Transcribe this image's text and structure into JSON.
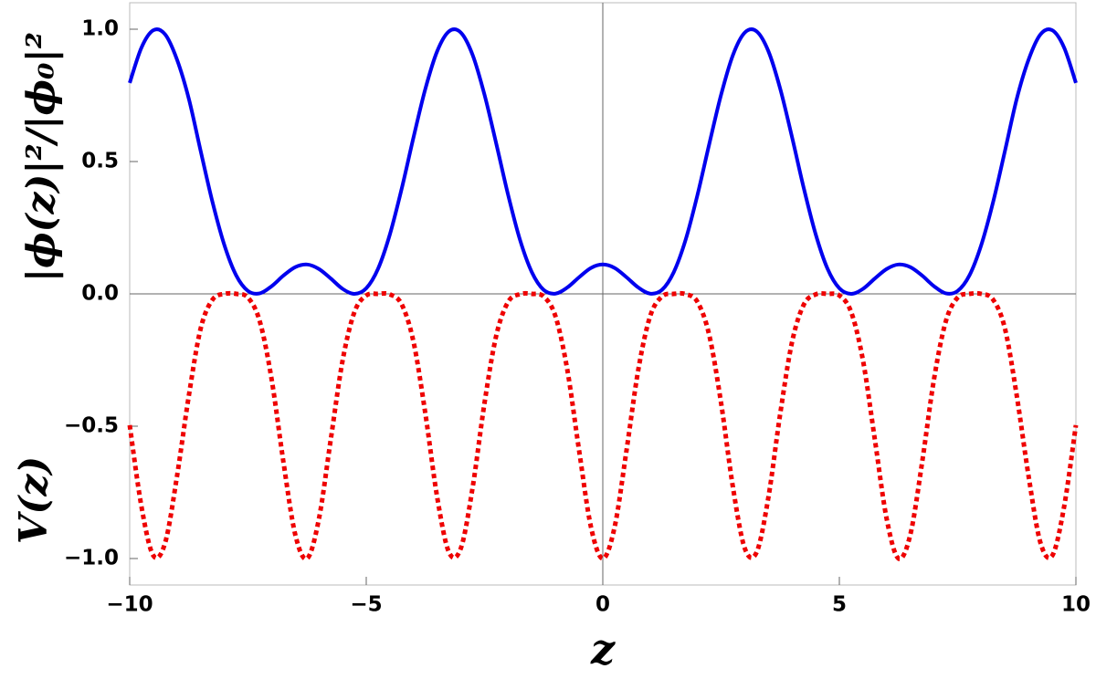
{
  "chart_data": {
    "type": "line",
    "xlabel": "z",
    "ylabels": [
      "|ϕ(z)|²/|ϕ₀|²",
      "V(z)"
    ],
    "x": [
      -10,
      -9.75,
      -9.5,
      -9.25,
      -9,
      -8.75,
      -8.5,
      -8.25,
      -8,
      -7.75,
      -7.5,
      -7.25,
      -7,
      -6.75,
      -6.5,
      -6.25,
      -6,
      -5.75,
      -5.5,
      -5.25,
      -5,
      -4.75,
      -4.5,
      -4.25,
      -4,
      -3.75,
      -3.5,
      -3.25,
      -3,
      -2.75,
      -2.5,
      -2.25,
      -2,
      -1.75,
      -1.5,
      -1.25,
      -1,
      -0.75,
      -0.5,
      -0.25,
      0,
      0.25,
      0.5,
      0.75,
      1,
      1.25,
      1.5,
      1.75,
      2,
      2.25,
      2.5,
      2.75,
      3,
      3.25,
      3.5,
      3.75,
      4,
      4.25,
      4.5,
      4.75,
      5,
      5.25,
      5.5,
      5.75,
      6,
      6.25,
      6.5,
      6.75,
      7,
      7.25,
      7.5,
      7.75,
      8,
      8.25,
      8.5,
      8.75,
      9,
      9.25,
      9.5,
      9.75,
      10
    ],
    "series": [
      {
        "color": "#0000ee",
        "style": "solid",
        "values": [
          0.797,
          0.931,
          0.996,
          0.98,
          0.885,
          0.737,
          0.54,
          0.347,
          0.185,
          0.07,
          0.011,
          0.002,
          0.029,
          0.069,
          0.101,
          0.111,
          0.094,
          0.058,
          0.019,
          0,
          0.021,
          0.095,
          0.225,
          0.398,
          0.592,
          0.775,
          0.917,
          0.992,
          0.987,
          0.902,
          0.752,
          0.566,
          0.373,
          0.204,
          0.082,
          0.015,
          0.001,
          0.024,
          0.063,
          0.098,
          0.111,
          0.098,
          0.063,
          0.024,
          0.001,
          0.015,
          0.082,
          0.204,
          0.373,
          0.566,
          0.752,
          0.902,
          0.987,
          0.992,
          0.917,
          0.775,
          0.592,
          0.398,
          0.225,
          0.095,
          0.021,
          0,
          0.019,
          0.058,
          0.094,
          0.111,
          0.101,
          0.069,
          0.029,
          0.002,
          0.011,
          0.07,
          0.185,
          0.347,
          0.54,
          0.737,
          0.885,
          0.98,
          0.996,
          0.931,
          0.797
        ]
      },
      {
        "color": "#ee0000",
        "style": "dotted",
        "values": [
          -0.496,
          -0.805,
          -0.989,
          -0.94,
          -0.689,
          -0.385,
          -0.131,
          -0.022,
          0,
          0,
          -0.014,
          -0.104,
          -0.323,
          -0.636,
          -0.91,
          -1,
          -0.85,
          -0.55,
          -0.252,
          -0.069,
          -0.006,
          0,
          -0.002,
          -0.04,
          -0.182,
          -0.453,
          -0.769,
          -0.977,
          -0.961,
          -0.73,
          -0.412,
          -0.156,
          -0.03,
          -0.001,
          0,
          -0.01,
          -0.085,
          -0.287,
          -0.593,
          -0.881,
          -1,
          -0.881,
          -0.593,
          -0.287,
          -0.085,
          -0.01,
          0,
          -0.001,
          -0.03,
          -0.156,
          -0.412,
          -0.73,
          -0.961,
          -0.977,
          -0.769,
          -0.453,
          -0.182,
          -0.04,
          -0.002,
          0,
          -0.006,
          -0.069,
          -0.252,
          -0.55,
          -0.85,
          -1,
          -0.91,
          -0.636,
          -0.323,
          -0.104,
          -0.014,
          0,
          0,
          -0.022,
          -0.131,
          -0.385,
          -0.689,
          -0.94,
          -0.989,
          -0.805,
          -0.496
        ]
      }
    ],
    "xlim": [
      -10,
      10
    ],
    "ylim": [
      -1.1,
      1.1
    ],
    "xticks": [
      {
        "value": -10,
        "label": "−10"
      },
      {
        "value": -5,
        "label": "−5"
      },
      0,
      5,
      10
    ],
    "yticks": [
      {
        "value": -1,
        "label": "−1.0"
      },
      {
        "value": -0.5,
        "label": "−0.5"
      },
      {
        "value": 0,
        "label": "0.0"
      },
      {
        "value": 0.5,
        "label": "0.5"
      },
      {
        "value": 1,
        "label": "1.0"
      }
    ],
    "zero_lines": true
  }
}
